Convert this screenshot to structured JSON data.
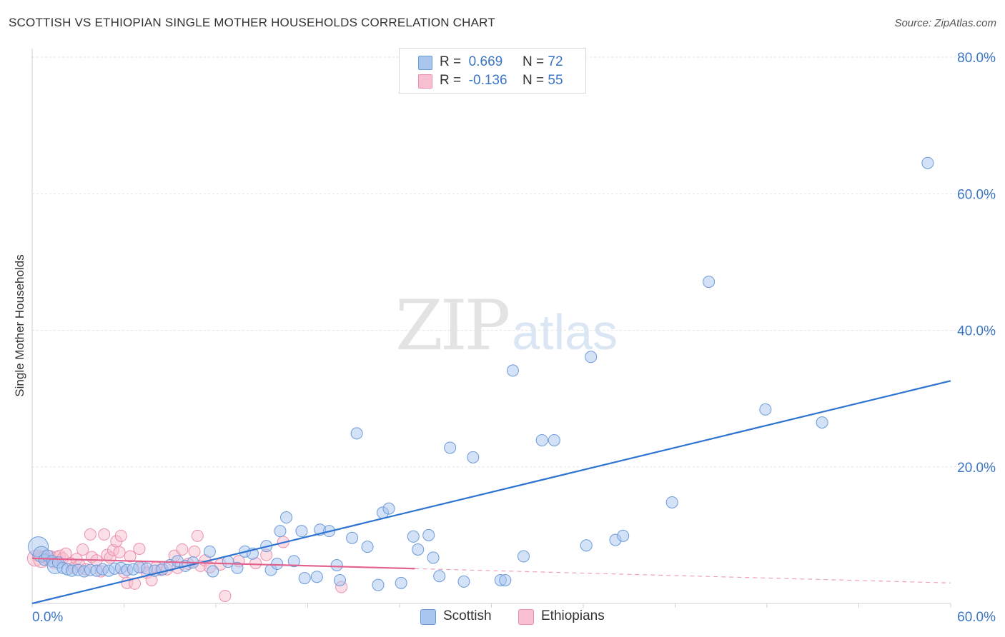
{
  "title": "SCOTTISH VS ETHIOPIAN SINGLE MOTHER HOUSEHOLDS CORRELATION CHART",
  "source": "Source: ZipAtlas.com",
  "watermark": {
    "zip": "ZIP",
    "atlas": "atlas"
  },
  "legend": {
    "scottish": {
      "r_label": "R =",
      "r_value": "0.669",
      "n_label": "N =",
      "n_value": "72"
    },
    "ethiopians": {
      "r_label": "R =",
      "r_value": "-0.136",
      "n_label": "N =",
      "n_value": "55"
    }
  },
  "bottom_legend": {
    "scottish": "Scottish",
    "ethiopians": "Ethiopians"
  },
  "colors": {
    "scottish_fill": "#a9c6ef",
    "scottish_stroke": "#6b9ad8",
    "scottish_line": "#2f74d0",
    "ethiopians_fill": "#f7bfd0",
    "ethiopians_stroke": "#ec8fae",
    "ethiopians_line": "#e2628e",
    "grid": "#e3e3e3",
    "tick_label": "#3a75c4"
  },
  "chart_data": {
    "type": "scatter",
    "title": "SCOTTISH VS ETHIOPIAN SINGLE MOTHER HOUSEHOLDS CORRELATION CHART",
    "xlabel": "",
    "ylabel": "Single Mother Households",
    "xlim": [
      0,
      60
    ],
    "ylim": [
      0,
      80
    ],
    "x_tick_labels": [
      {
        "value": 0,
        "label": "0.0%"
      },
      {
        "value": 60,
        "label": "60.0%"
      }
    ],
    "y_tick_labels": [
      {
        "value": 20,
        "label": "20.0%"
      },
      {
        "value": 40,
        "label": "40.0%"
      },
      {
        "value": 60,
        "label": "60.0%"
      },
      {
        "value": 80,
        "label": "80.0%"
      }
    ],
    "grid": true,
    "legend_position": "top-center",
    "series": [
      {
        "name": "Scottish",
        "R": 0.669,
        "N": 72,
        "trend": {
          "x": [
            0,
            60
          ],
          "y": [
            0.0,
            32.6
          ]
        },
        "points": [
          [
            0.4,
            8.3,
            3
          ],
          [
            0.6,
            7.2,
            2
          ],
          [
            0.8,
            6.4,
            1
          ],
          [
            1.0,
            7.0,
            1
          ],
          [
            1.3,
            6.2,
            1
          ],
          [
            1.5,
            5.5,
            2
          ],
          [
            1.7,
            6.0,
            1
          ],
          [
            2.0,
            5.2,
            1
          ],
          [
            2.3,
            5.0,
            1
          ],
          [
            2.6,
            4.8,
            1
          ],
          [
            3.0,
            4.9,
            1
          ],
          [
            3.4,
            4.7,
            1
          ],
          [
            3.8,
            4.9,
            1
          ],
          [
            4.2,
            4.8,
            1
          ],
          [
            4.6,
            5.0,
            1
          ],
          [
            5.0,
            4.8,
            1
          ],
          [
            5.4,
            5.1,
            1
          ],
          [
            5.8,
            5.2,
            1
          ],
          [
            6.2,
            4.9,
            1
          ],
          [
            6.6,
            5.0,
            1
          ],
          [
            7.0,
            5.3,
            1
          ],
          [
            7.5,
            5.1,
            1
          ],
          [
            8.0,
            4.8,
            1
          ],
          [
            8.5,
            5.0,
            1
          ],
          [
            9.0,
            5.6,
            1
          ],
          [
            9.5,
            6.2,
            1
          ],
          [
            10.0,
            5.5,
            1
          ],
          [
            10.5,
            6.0,
            1
          ],
          [
            11.6,
            7.6,
            1
          ],
          [
            11.8,
            4.7,
            1
          ],
          [
            12.8,
            6.1,
            1
          ],
          [
            13.4,
            5.2,
            1
          ],
          [
            13.9,
            7.6,
            1
          ],
          [
            14.4,
            7.3,
            1
          ],
          [
            15.3,
            8.4,
            1
          ],
          [
            15.6,
            4.9,
            1
          ],
          [
            16.0,
            5.8,
            1
          ],
          [
            16.2,
            10.6,
            1
          ],
          [
            16.6,
            12.6,
            1
          ],
          [
            17.1,
            6.2,
            1
          ],
          [
            17.6,
            10.6,
            1
          ],
          [
            17.8,
            3.7,
            1
          ],
          [
            18.6,
            3.9,
            1
          ],
          [
            18.8,
            10.8,
            1
          ],
          [
            19.4,
            10.6,
            1
          ],
          [
            19.9,
            5.6,
            1
          ],
          [
            20.1,
            3.4,
            1
          ],
          [
            20.9,
            9.6,
            1
          ],
          [
            21.2,
            24.9,
            1
          ],
          [
            21.9,
            8.3,
            1
          ],
          [
            22.6,
            2.7,
            1
          ],
          [
            22.9,
            13.3,
            1
          ],
          [
            23.3,
            13.9,
            1
          ],
          [
            24.1,
            3.0,
            1
          ],
          [
            24.9,
            9.8,
            1
          ],
          [
            25.2,
            7.9,
            1
          ],
          [
            25.9,
            10.0,
            1
          ],
          [
            26.2,
            6.7,
            1
          ],
          [
            26.6,
            4.0,
            1
          ],
          [
            27.3,
            22.8,
            1
          ],
          [
            28.2,
            3.2,
            1
          ],
          [
            28.8,
            21.4,
            1
          ],
          [
            30.6,
            3.4,
            1
          ],
          [
            30.9,
            3.4,
            1
          ],
          [
            31.4,
            34.1,
            1
          ],
          [
            32.1,
            6.9,
            1
          ],
          [
            33.3,
            23.9,
            1
          ],
          [
            34.1,
            23.9,
            1
          ],
          [
            36.2,
            8.5,
            1
          ],
          [
            36.5,
            36.1,
            1
          ],
          [
            38.1,
            9.3,
            1
          ],
          [
            38.6,
            9.9,
            1
          ],
          [
            41.8,
            14.8,
            1
          ],
          [
            44.2,
            47.1,
            1
          ],
          [
            47.9,
            28.4,
            1
          ],
          [
            51.6,
            26.5,
            1
          ],
          [
            58.5,
            64.5,
            1
          ]
        ]
      },
      {
        "name": "Ethiopians",
        "R": -0.136,
        "N": 55,
        "trend": {
          "x": [
            0,
            25
          ],
          "y": [
            6.6,
            5.1
          ]
        },
        "trend_extension": {
          "x": [
            25,
            60
          ],
          "y": [
            5.1,
            3.0
          ]
        },
        "points": [
          [
            0.2,
            6.6,
            2
          ],
          [
            0.4,
            7.0,
            1
          ],
          [
            0.6,
            6.4,
            2
          ],
          [
            0.8,
            6.9,
            1
          ],
          [
            1.0,
            6.5,
            1
          ],
          [
            1.2,
            6.9,
            1
          ],
          [
            1.4,
            6.0,
            1
          ],
          [
            1.6,
            6.8,
            1
          ],
          [
            1.8,
            7.0,
            1
          ],
          [
            2.0,
            6.6,
            1
          ],
          [
            2.2,
            7.3,
            1
          ],
          [
            2.5,
            5.9,
            1
          ],
          [
            2.7,
            5.2,
            1
          ],
          [
            2.9,
            6.5,
            1
          ],
          [
            3.1,
            5.6,
            1
          ],
          [
            3.3,
            7.9,
            1
          ],
          [
            3.5,
            5.0,
            1
          ],
          [
            3.8,
            10.1,
            1
          ],
          [
            3.9,
            6.8,
            1
          ],
          [
            4.2,
            6.3,
            1
          ],
          [
            4.5,
            4.7,
            1
          ],
          [
            4.7,
            10.1,
            1
          ],
          [
            4.9,
            7.1,
            1
          ],
          [
            5.1,
            6.7,
            1
          ],
          [
            5.3,
            7.8,
            1
          ],
          [
            5.5,
            9.1,
            1
          ],
          [
            5.7,
            7.5,
            1
          ],
          [
            5.8,
            9.9,
            1
          ],
          [
            6.0,
            4.6,
            1
          ],
          [
            6.2,
            3.0,
            1
          ],
          [
            6.4,
            6.9,
            1
          ],
          [
            6.7,
            2.9,
            1
          ],
          [
            7.0,
            8.0,
            1
          ],
          [
            7.2,
            5.3,
            1
          ],
          [
            7.5,
            4.5,
            1
          ],
          [
            7.8,
            3.4,
            1
          ],
          [
            8.1,
            5.3,
            1
          ],
          [
            8.4,
            4.9,
            1
          ],
          [
            8.8,
            5.0,
            1
          ],
          [
            9.3,
            7.0,
            1
          ],
          [
            9.5,
            5.2,
            1
          ],
          [
            9.8,
            7.9,
            1
          ],
          [
            10.2,
            5.8,
            1
          ],
          [
            10.6,
            7.6,
            1
          ],
          [
            10.8,
            9.9,
            1
          ],
          [
            11.0,
            5.5,
            1
          ],
          [
            11.3,
            6.3,
            1
          ],
          [
            11.6,
            5.3,
            1
          ],
          [
            12.3,
            5.7,
            1
          ],
          [
            12.6,
            1.1,
            1
          ],
          [
            13.5,
            6.2,
            1
          ],
          [
            14.6,
            5.9,
            1
          ],
          [
            15.3,
            7.1,
            1
          ],
          [
            16.4,
            9.0,
            1
          ],
          [
            20.2,
            2.4,
            1
          ]
        ]
      }
    ]
  }
}
